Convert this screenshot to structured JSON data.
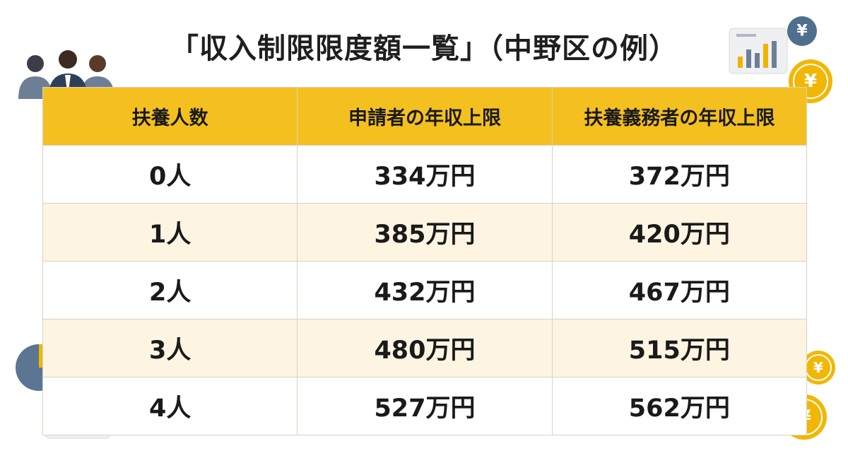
{
  "title": "「収入制限限度額一覧」（中野区の例）",
  "table": {
    "header": [
      "扶養人数",
      "申請者の年収上限",
      "扶養義務者の年収上限"
    ],
    "rows": [
      [
        "0人",
        "334万円",
        "372万円"
      ],
      [
        "1人",
        "385万円",
        "420万円"
      ],
      [
        "2人",
        "432万円",
        "467万円"
      ],
      [
        "3人",
        "480万円",
        "515万円"
      ],
      [
        "4人",
        "527万円",
        "562万円"
      ]
    ]
  },
  "icons": {
    "coin_symbol": "¥"
  }
}
